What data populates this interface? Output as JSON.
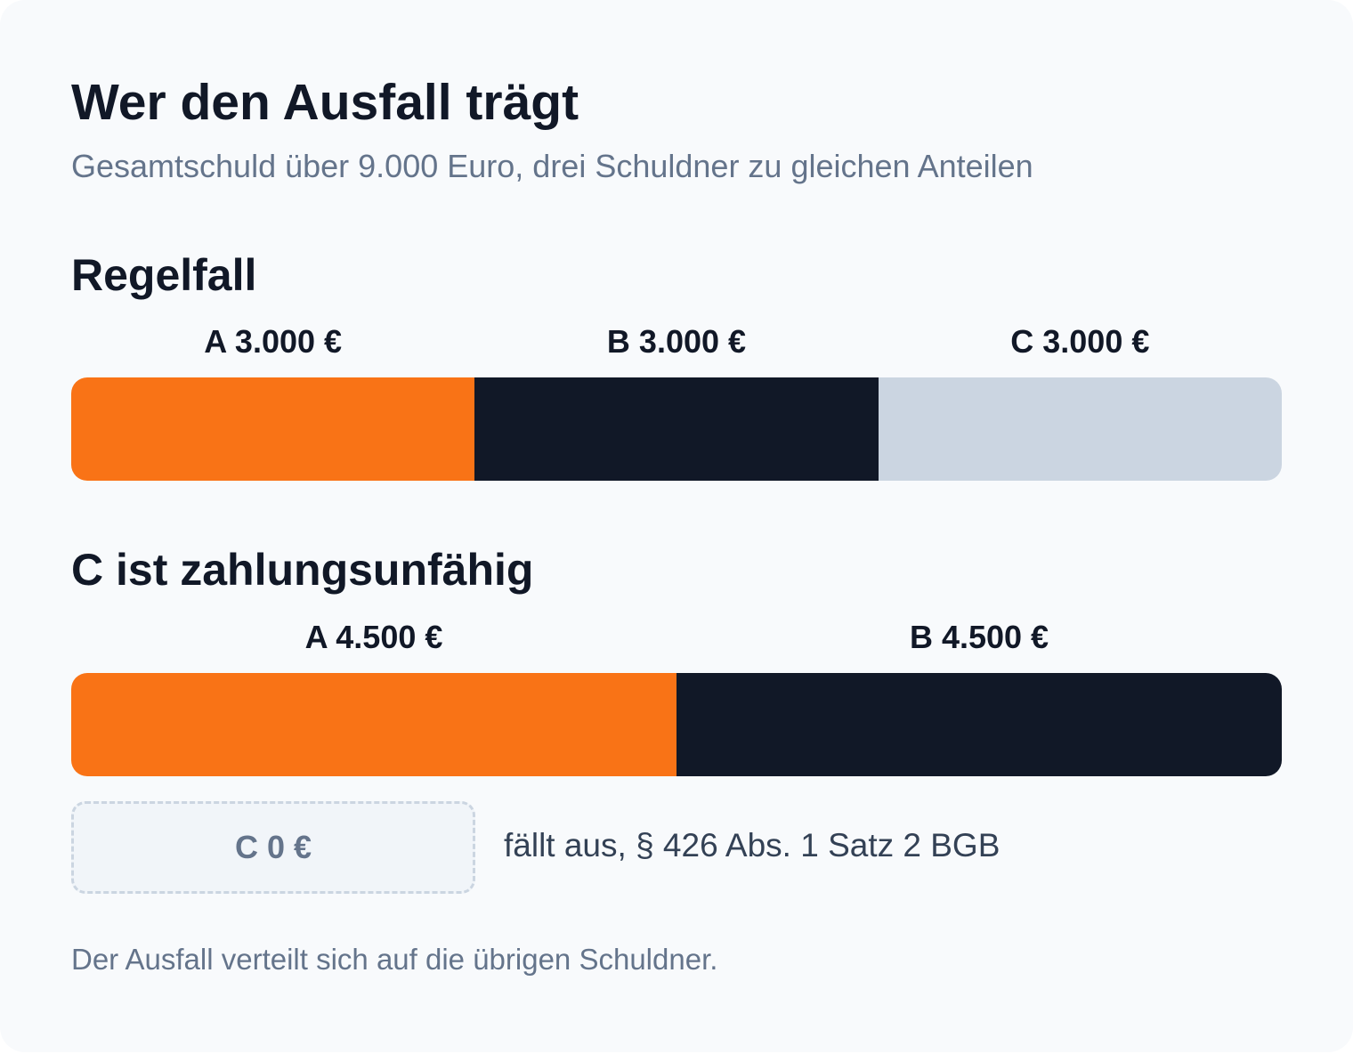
{
  "title": "Wer den Ausfall trägt",
  "subtitle": "Gesamtschuld über 9.000 Euro, drei Schuldner zu gleichen Anteilen",
  "colors": {
    "A": "#f97316",
    "B": "#111827",
    "C": "#cbd5e1"
  },
  "sections": [
    {
      "heading": "Regelfall",
      "segments": [
        {
          "label": "A 3.000 €",
          "value": 3000,
          "color": "#f97316"
        },
        {
          "label": "B 3.000 €",
          "value": 3000,
          "color": "#111827"
        },
        {
          "label": "C 3.000 €",
          "value": 3000,
          "color": "#cbd5e1"
        }
      ]
    },
    {
      "heading": "C ist zahlungsunfähig",
      "segments": [
        {
          "label": "A 4.500 €",
          "value": 4500,
          "color": "#f97316"
        },
        {
          "label": "B 4.500 €",
          "value": 4500,
          "color": "#111827"
        }
      ]
    }
  ],
  "excluded": {
    "label": "C 0 €",
    "note": "fällt aus, § 426 Abs. 1 Satz 2 BGB"
  },
  "footer": "Der Ausfall verteilt sich auf die übrigen Schuldner.",
  "chart_data": [
    {
      "type": "bar",
      "title": "Regelfall",
      "categories": [
        "A",
        "B",
        "C"
      ],
      "values": [
        3000,
        3000,
        3000
      ],
      "unit": "€"
    },
    {
      "type": "bar",
      "title": "C ist zahlungsunfähig",
      "categories": [
        "A",
        "B",
        "C"
      ],
      "values": [
        4500,
        4500,
        0
      ],
      "unit": "€"
    }
  ]
}
